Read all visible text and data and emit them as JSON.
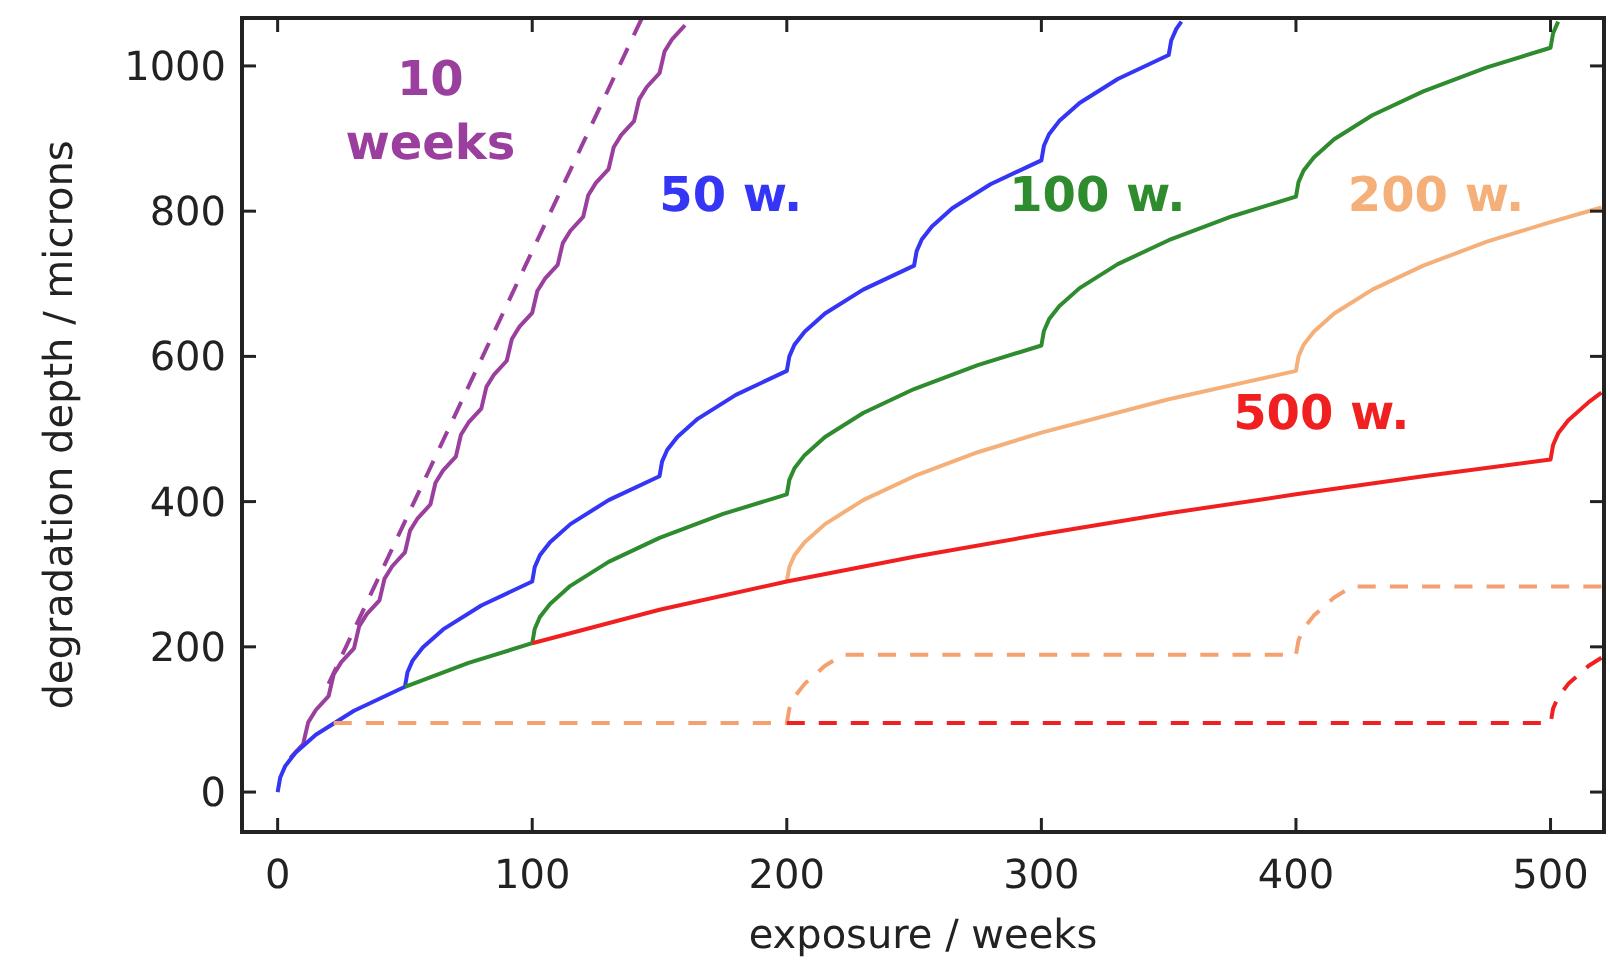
{
  "chart_data": {
    "type": "line",
    "xlabel": "exposure / weeks",
    "ylabel": "degradation depth / microns",
    "xlim": [
      -14,
      521
    ],
    "ylim": [
      -55,
      1066
    ],
    "xticks": [
      0,
      100,
      200,
      300,
      400,
      500
    ],
    "yticks": [
      0,
      200,
      400,
      600,
      800,
      1000
    ],
    "grid": false,
    "marker": "none",
    "series": [
      {
        "name": "10 weeks",
        "color": "#9a3f9e",
        "line_style": "solid",
        "x": [
          5,
          10,
          12,
          15,
          20,
          22,
          25,
          30,
          32,
          35,
          40,
          42,
          45,
          50,
          52,
          55,
          60,
          62,
          65,
          70,
          72,
          75,
          80,
          82,
          85,
          90,
          92,
          95,
          100,
          102,
          105,
          110,
          112,
          115,
          120,
          122,
          125,
          130,
          132,
          135,
          140,
          142,
          145,
          150,
          152,
          155,
          160
        ],
        "values": [
          47,
          66,
          96,
          113,
          132,
          162,
          179,
          198,
          228,
          245,
          264,
          294,
          311,
          330,
          360,
          377,
          396,
          426,
          443,
          462,
          492,
          509,
          528,
          558,
          575,
          594,
          624,
          641,
          660,
          690,
          707,
          726,
          756,
          773,
          792,
          822,
          839,
          858,
          888,
          905,
          924,
          954,
          971,
          990,
          1020,
          1037,
          1056
        ]
      },
      {
        "color": "#9a3f9e",
        "line_style": "dashed",
        "x": [
          20,
          40,
          60,
          80,
          100,
          120,
          140,
          143
        ],
        "values": [
          149,
          298,
          447,
          596,
          745,
          894,
          1043,
          1065
        ]
      },
      {
        "name": "50 w.",
        "color": "#3535f5",
        "line_style": "solid",
        "x": [
          0,
          1,
          3,
          7,
          15,
          30,
          50,
          51,
          53,
          57,
          65,
          80,
          100,
          101,
          103,
          107,
          115,
          130,
          150,
          151,
          153,
          157,
          165,
          180,
          200,
          201,
          203,
          207,
          215,
          230,
          250,
          251,
          253,
          257,
          265,
          280,
          300,
          301,
          303,
          307,
          315,
          330,
          350,
          351,
          353,
          355
        ],
        "values": [
          0,
          20,
          36,
          54,
          79,
          112,
          145,
          165,
          181,
          199,
          224,
          257,
          290,
          310,
          326,
          344,
          369,
          402,
          435,
          455,
          471,
          489,
          514,
          547,
          580,
          600,
          616,
          634,
          659,
          692,
          725,
          745,
          761,
          779,
          804,
          837,
          870,
          890,
          906,
          924,
          949,
          982,
          1015,
          1035,
          1051,
          1061
        ]
      },
      {
        "name": "100 w.",
        "color": "#2e8b2e",
        "line_style": "solid",
        "x": [
          50,
          75,
          100,
          101,
          103,
          107,
          115,
          130,
          150,
          175,
          200,
          201,
          203,
          207,
          215,
          230,
          250,
          275,
          300,
          301,
          303,
          307,
          315,
          330,
          350,
          375,
          400,
          401,
          403,
          407,
          415,
          430,
          450,
          475,
          500,
          501,
          503
        ],
        "values": [
          145,
          178,
          205,
          225,
          241,
          259,
          284,
          317,
          350,
          383,
          410,
          430,
          446,
          464,
          489,
          522,
          555,
          588,
          615,
          635,
          651,
          669,
          694,
          727,
          760,
          793,
          820,
          840,
          856,
          874,
          899,
          932,
          965,
          998,
          1025,
          1045,
          1061
        ]
      },
      {
        "name": "200 w.",
        "color": "#f5b07a",
        "line_style": "solid",
        "x": [
          200,
          201,
          203,
          207,
          215,
          230,
          250,
          275,
          300,
          350,
          400,
          401,
          403,
          407,
          415,
          430,
          450,
          475,
          500,
          520
        ],
        "values": [
          290,
          310,
          326,
          344,
          369,
          402,
          435,
          468,
          495,
          541,
          580,
          600,
          616,
          634,
          659,
          692,
          725,
          758,
          785,
          805
        ]
      },
      {
        "name": "500 w.",
        "color": "#f02020",
        "line_style": "solid",
        "x": [
          100,
          150,
          200,
          250,
          300,
          350,
          400,
          450,
          500,
          501,
          503,
          507,
          515,
          520
        ],
        "values": [
          205,
          251,
          290,
          324,
          355,
          384,
          410,
          435,
          458,
          478,
          494,
          512,
          537,
          550
        ]
      },
      {
        "color": "#f5a070",
        "line_style": "dashed",
        "x": [
          22,
          200,
          201,
          203,
          207,
          215,
          222,
          400,
          401,
          403,
          407,
          415,
          422,
          520
        ],
        "values": [
          95,
          95,
          115,
          131,
          149,
          174,
          189,
          189,
          209,
          225,
          243,
          268,
          283,
          283
        ]
      },
      {
        "color": "#f02020",
        "line_style": "dashed",
        "x": [
          200,
          500,
          501,
          503,
          507,
          515,
          520
        ],
        "values": [
          95,
          95,
          115,
          131,
          149,
          174,
          185
        ]
      }
    ]
  }
}
